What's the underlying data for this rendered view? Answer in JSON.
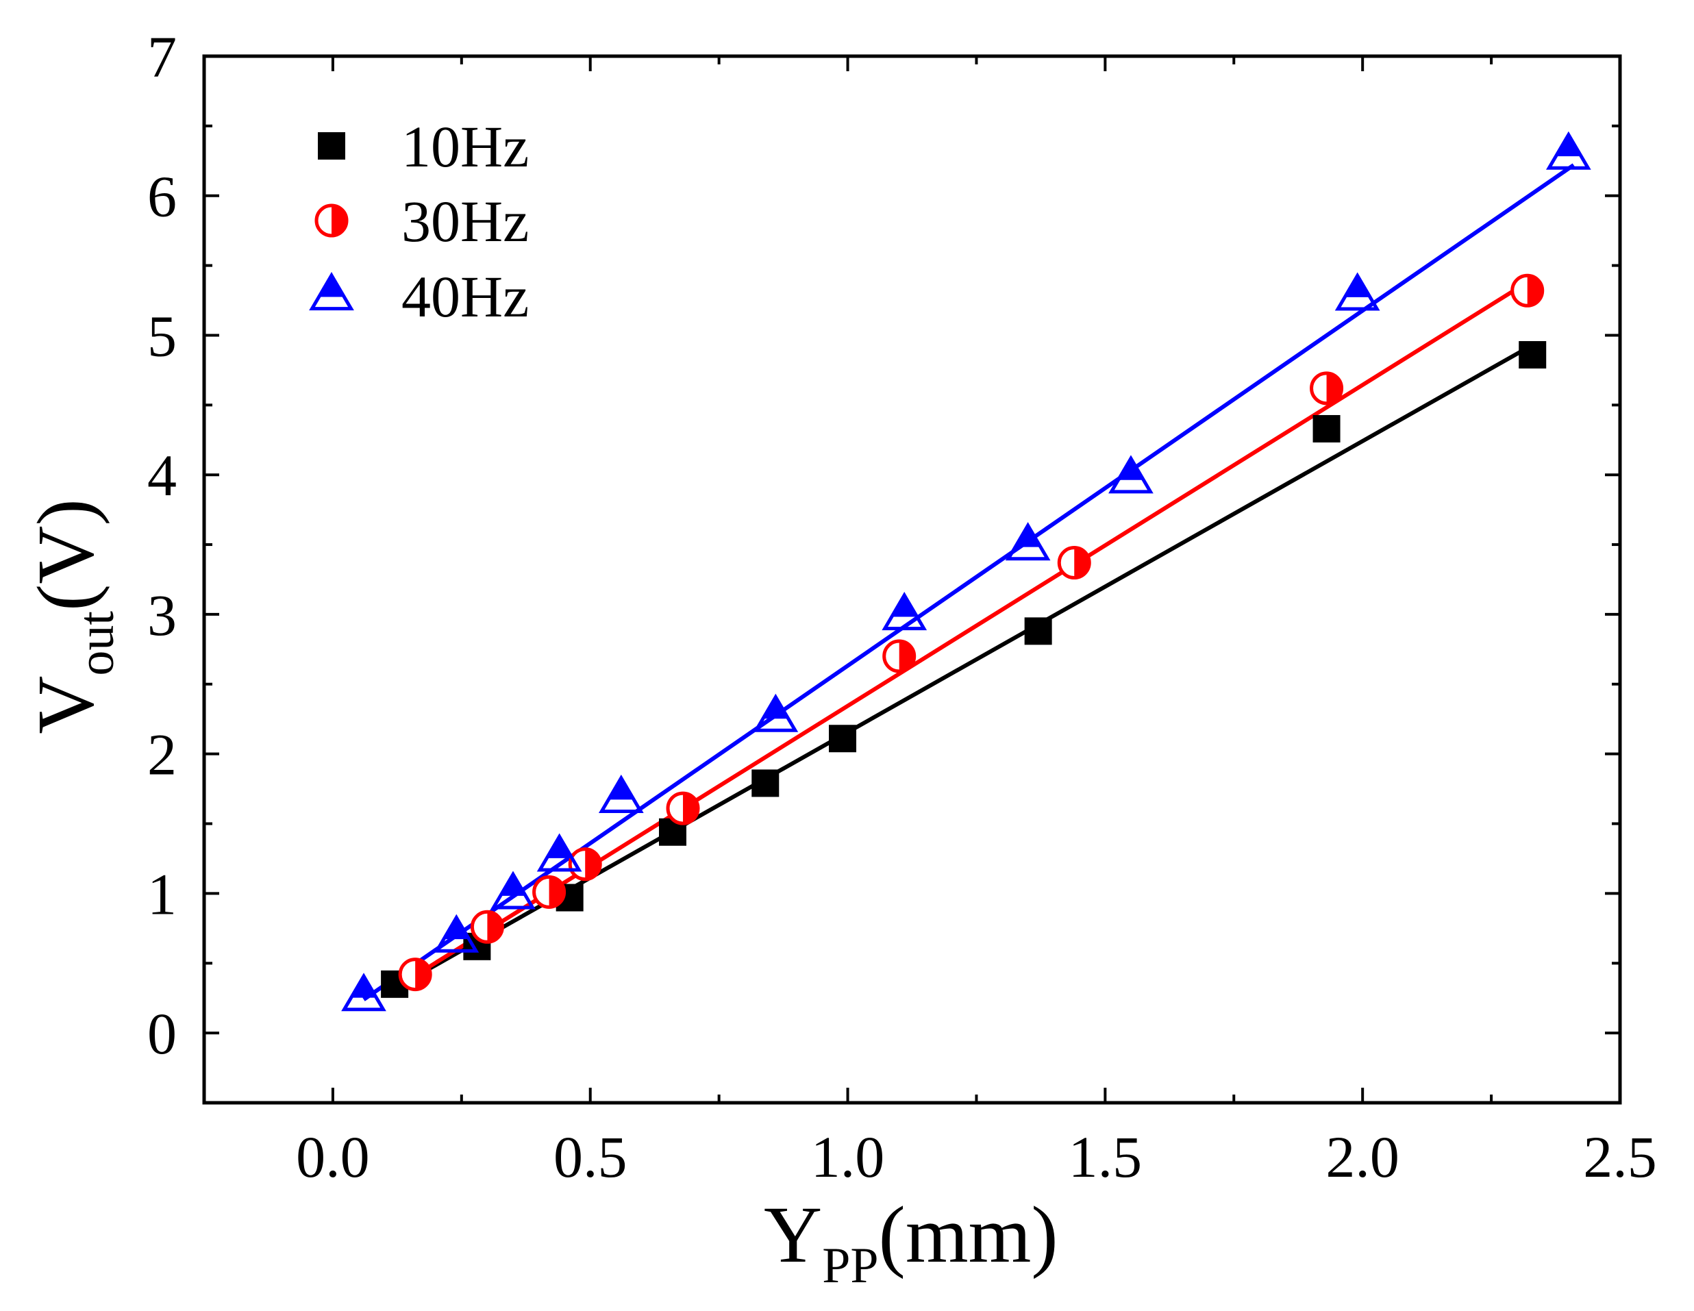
{
  "chart_data": {
    "type": "scatter",
    "title": "",
    "xlabel": {
      "main": "Y",
      "sub": "PP",
      "unit": "(mm)"
    },
    "ylabel": {
      "main": "V",
      "sub": "out",
      "unit": "(V)"
    },
    "xlim": [
      -0.25,
      2.5
    ],
    "ylim": [
      -0.5,
      7
    ],
    "xticks": [
      0.0,
      0.5,
      1.0,
      1.5,
      2.0,
      2.5
    ],
    "xtick_labels": [
      "0.0",
      "0.5",
      "1.0",
      "1.5",
      "2.0",
      "2.5"
    ],
    "yticks": [
      0,
      1,
      2,
      3,
      4,
      5,
      6,
      7
    ],
    "ytick_labels": [
      "0",
      "1",
      "2",
      "3",
      "4",
      "5",
      "6",
      "7"
    ],
    "grid": false,
    "legend_position": "top-left",
    "series": [
      {
        "name": "10Hz",
        "marker": "square-filled",
        "color": "#000000",
        "x": [
          0.12,
          0.28,
          0.46,
          0.66,
          0.84,
          0.99,
          1.37,
          1.93,
          2.33
        ],
        "y": [
          0.35,
          0.62,
          0.97,
          1.44,
          1.79,
          2.11,
          2.88,
          4.33,
          4.86
        ],
        "fit": {
          "x": [
            0.12,
            2.33
          ],
          "y": [
            0.32,
            4.93
          ]
        }
      },
      {
        "name": "30Hz",
        "marker": "circle-half-right",
        "color": "#ff0000",
        "x": [
          0.16,
          0.3,
          0.42,
          0.49,
          0.68,
          1.1,
          1.44,
          1.93,
          2.32
        ],
        "y": [
          0.42,
          0.76,
          1.01,
          1.21,
          1.61,
          2.7,
          3.37,
          4.62,
          5.32
        ],
        "fit": {
          "x": [
            0.12,
            2.32
          ],
          "y": [
            0.32,
            5.38
          ]
        }
      },
      {
        "name": "40Hz",
        "marker": "triangle-up-half-top",
        "color": "#0000ff",
        "x": [
          0.06,
          0.24,
          0.35,
          0.44,
          0.56,
          0.86,
          1.11,
          1.35,
          1.55,
          1.99,
          2.4
        ],
        "y": [
          0.26,
          0.68,
          0.99,
          1.26,
          1.68,
          2.26,
          2.99,
          3.49,
          3.97,
          5.28,
          6.29
        ],
        "fit": {
          "x": [
            0.06,
            2.41
          ],
          "y": [
            0.24,
            6.22
          ]
        }
      }
    ]
  }
}
